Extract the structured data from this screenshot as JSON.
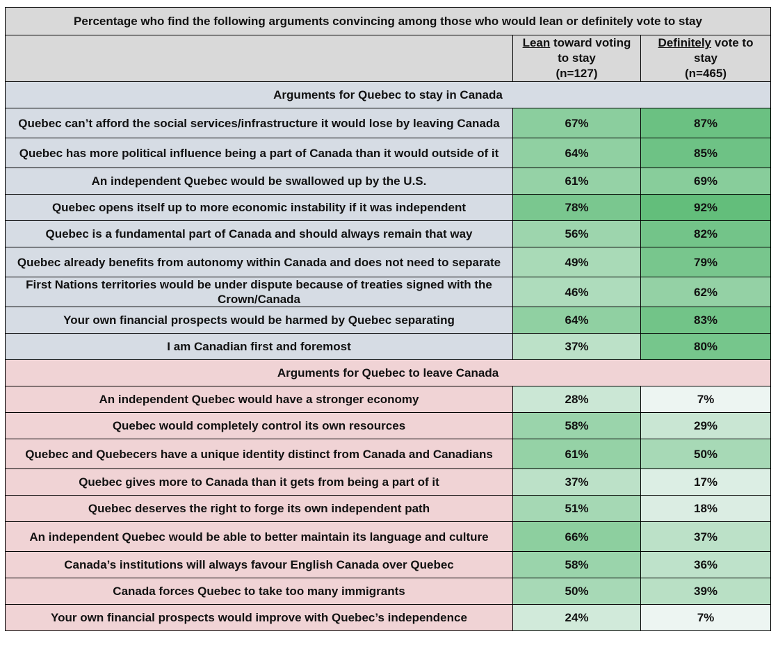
{
  "title": "Percentage who find the following arguments convincing among those who would lean or definitely vote to stay",
  "columns": [
    {
      "underlined": "Lean",
      "rest": " toward voting to stay",
      "n": "(n=127)"
    },
    {
      "underlined": "Definitely",
      "rest": " vote to stay",
      "n": "(n=465)"
    }
  ],
  "colors": {
    "low": "#f8f9fc",
    "high": "#63be7b",
    "stay_bg": "#d6dce4",
    "leave_bg": "#f0d3d5",
    "header_bg": "#d9d9d9"
  },
  "sections": [
    {
      "key": "stay",
      "title": "Arguments for Quebec to stay in Canada",
      "rows": [
        {
          "label": "Quebec can’t afford the social services/infrastructure it would lose by leaving Canada",
          "lean": "67%",
          "definitely": "87%",
          "lines": 2
        },
        {
          "label": "Quebec has more political influence being a part of Canada than it would outside of it",
          "lean": "64%",
          "definitely": "85%",
          "lines": 2
        },
        {
          "label": "An independent Quebec would be swallowed up by the U.S.",
          "lean": "61%",
          "definitely": "69%",
          "lines": 1
        },
        {
          "label": "Quebec opens itself up to more economic instability if it was independent",
          "lean": "78%",
          "definitely": "92%",
          "lines": 1
        },
        {
          "label": "Quebec is a fundamental part of Canada and should always remain that way",
          "lean": "56%",
          "definitely": "82%",
          "lines": 1
        },
        {
          "label": "Quebec already benefits from autonomy within Canada and does not need to separate",
          "lean": "49%",
          "definitely": "79%",
          "lines": 2
        },
        {
          "label": "First Nations territories would be under dispute because of treaties signed with the Crown/Canada",
          "lean": "46%",
          "definitely": "62%",
          "lines": 2
        },
        {
          "label": "Your own financial prospects would be harmed by Quebec separating",
          "lean": "64%",
          "definitely": "83%",
          "lines": 1
        },
        {
          "label": "I am Canadian first and foremost",
          "lean": "37%",
          "definitely": "80%",
          "lines": 1
        }
      ]
    },
    {
      "key": "leave",
      "title": "Arguments for Quebec to leave Canada",
      "rows": [
        {
          "label": "An independent Quebec would have a stronger economy",
          "lean": "28%",
          "definitely": "7%",
          "lines": 1
        },
        {
          "label": "Quebec would completely control its own resources",
          "lean": "58%",
          "definitely": "29%",
          "lines": 1
        },
        {
          "label": "Quebec and Quebecers have a unique identity distinct from Canada and Canadians",
          "lean": "61%",
          "definitely": "50%",
          "lines": 2
        },
        {
          "label": "Quebec gives more to Canada than it gets from being a part of it",
          "lean": "37%",
          "definitely": "17%",
          "lines": 1
        },
        {
          "label": "Quebec deserves the right to forge its own independent path",
          "lean": "51%",
          "definitely": "18%",
          "lines": 1
        },
        {
          "label": "An independent Quebec would be able to better maintain its language and culture",
          "lean": "66%",
          "definitely": "37%",
          "lines": 2
        },
        {
          "label": "Canada’s institutions will always favour English Canada over Quebec",
          "lean": "58%",
          "definitely": "36%",
          "lines": 1
        },
        {
          "label": "Canada forces Quebec to take too many immigrants",
          "lean": "50%",
          "definitely": "39%",
          "lines": 1
        },
        {
          "label": "Your own financial prospects would improve with Quebec’s independence",
          "lean": "24%",
          "definitely": "7%",
          "lines": 1
        }
      ]
    }
  ]
}
